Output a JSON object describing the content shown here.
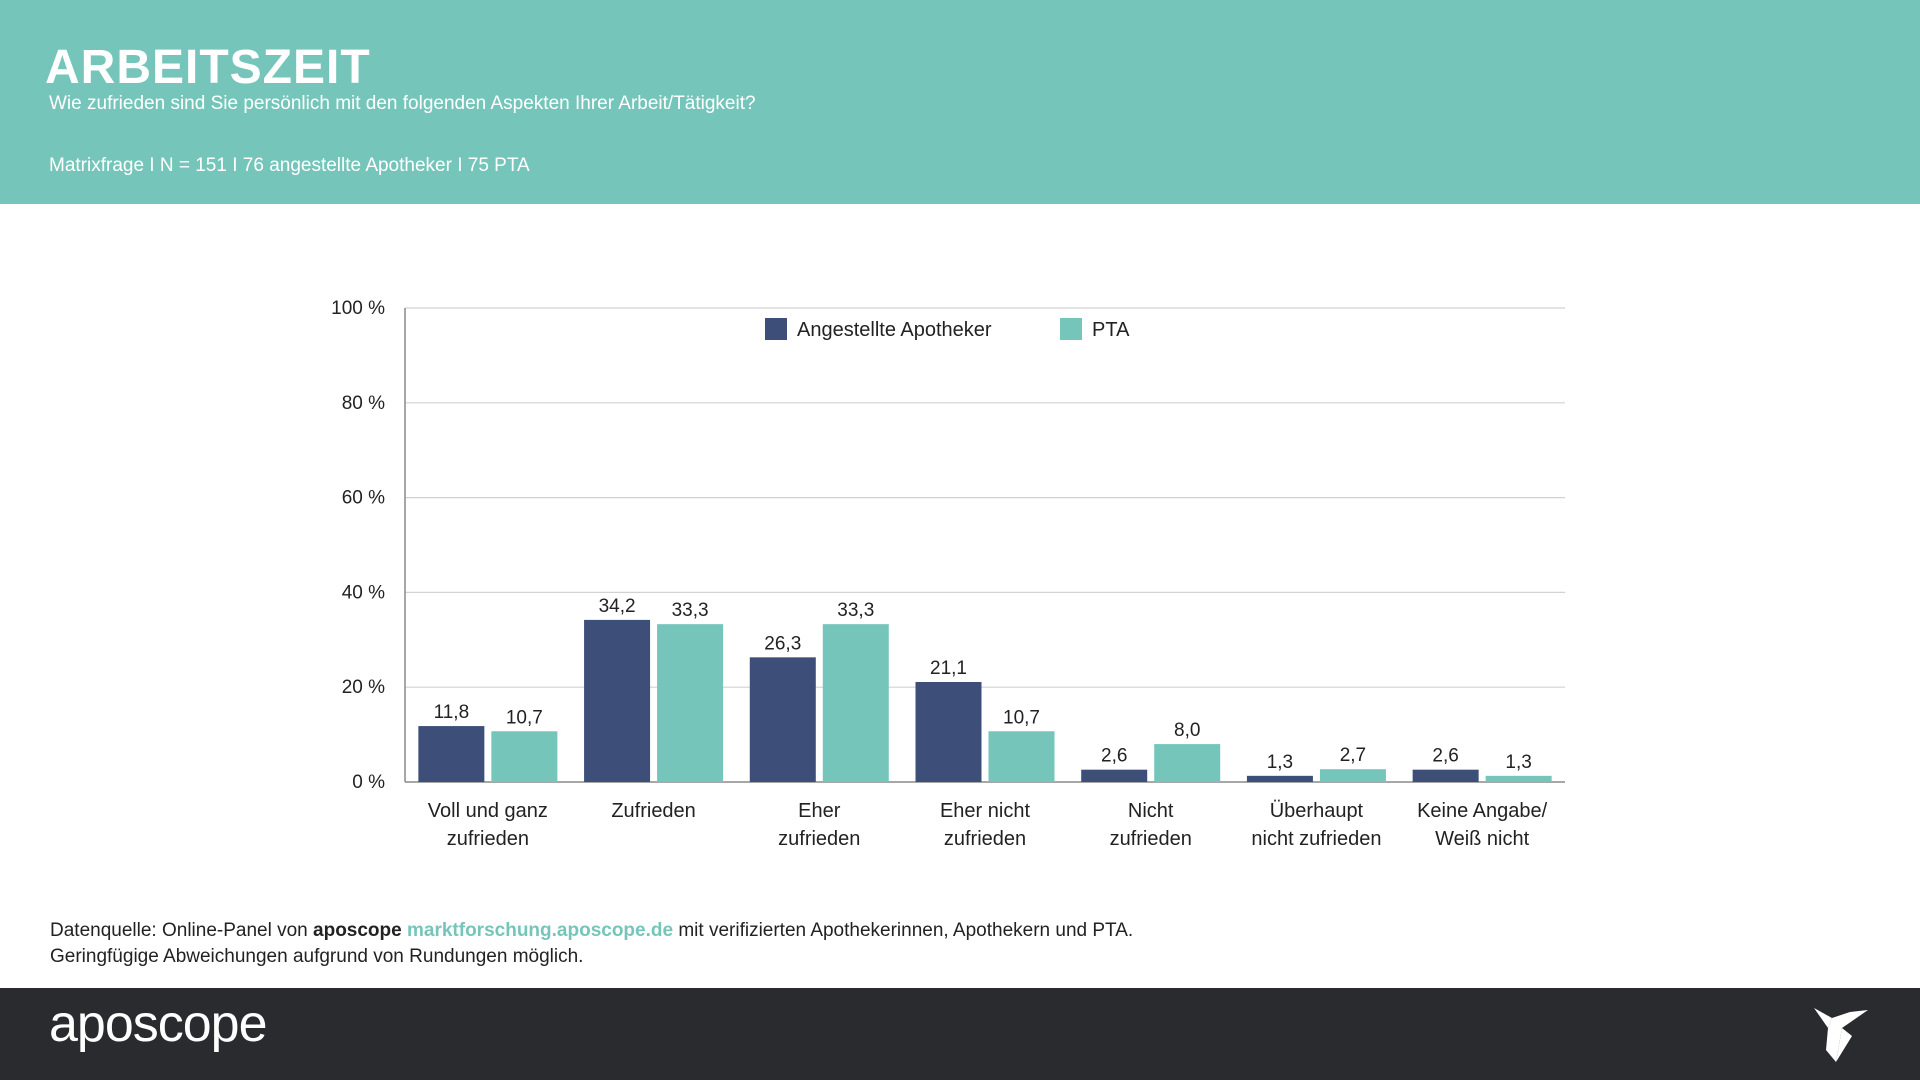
{
  "header": {
    "title": "ARBEITSZEIT",
    "subtitle": "Wie zufrieden sind Sie persönlich mit den folgenden Aspekten Ihrer Arbeit/Tätigkeit?",
    "meta": "Matrixfrage I N = 151 I 76 angestellte Apotheker I 75 PTA"
  },
  "chart_data": {
    "type": "bar",
    "categories": [
      [
        "Voll und ganz",
        "zufrieden"
      ],
      [
        "Zufrieden"
      ],
      [
        "Eher",
        "zufrieden"
      ],
      [
        "Eher nicht",
        "zufrieden"
      ],
      [
        "Nicht",
        "zufrieden"
      ],
      [
        "Überhaupt",
        "nicht zufrieden"
      ],
      [
        "Keine Angabe/",
        "Weiß nicht"
      ]
    ],
    "series": [
      {
        "name": "Angestellte Apotheker",
        "color": "#3d4f78",
        "values": [
          11.8,
          34.2,
          26.3,
          21.1,
          2.6,
          1.3,
          2.6
        ],
        "labels": [
          "11,8",
          "34,2",
          "26,3",
          "21,1",
          "2,6",
          "1,3",
          "2,6"
        ]
      },
      {
        "name": "PTA",
        "color": "#76c5bb",
        "values": [
          10.7,
          33.3,
          33.3,
          10.7,
          8.0,
          2.7,
          1.3
        ],
        "labels": [
          "10,7",
          "33,3",
          "33,3",
          "10,7",
          "8,0",
          "2,7",
          "1,3"
        ]
      }
    ],
    "ylim": [
      0,
      100
    ],
    "yticks": [
      "0 %",
      "20 %",
      "40 %",
      "60 %",
      "80 %",
      "100 %"
    ],
    "ytick_values": [
      0,
      20,
      40,
      60,
      80,
      100
    ],
    "grid": true,
    "legend": "top-center"
  },
  "source": {
    "prefix": "Datenquelle: Online-Panel von ",
    "brand": "aposcope",
    "link": "marktforschung.aposcope.de",
    "suffix": " mit verifizierten Apothekerinnen, Apothekern und PTA.",
    "line2": "Geringfügige Abweichungen aufgrund von Rundungen möglich."
  },
  "footer": {
    "logo": "aposcope",
    "icon": "origami-bird-icon"
  }
}
